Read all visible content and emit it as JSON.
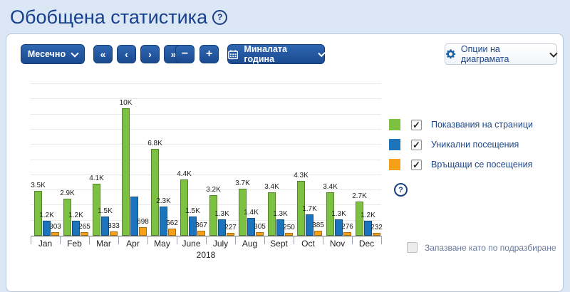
{
  "header": {
    "title": "Обобщена статистика",
    "help_icon": "?"
  },
  "toolbar": {
    "period_dropdown": {
      "label": "Месечно"
    },
    "nav_buttons": [
      {
        "name": "first",
        "glyph": "«"
      },
      {
        "name": "prev",
        "glyph": "‹"
      },
      {
        "name": "next",
        "glyph": "›"
      },
      {
        "name": "last",
        "glyph": "»"
      }
    ],
    "zoom_out_label": "−",
    "zoom_in_label": "+",
    "range_dropdown": {
      "label": "Миналата година",
      "icon": "calendar-icon"
    },
    "options_dropdown": {
      "label": "Опции на диаграмата",
      "icon": "gear-icon"
    }
  },
  "legend": {
    "items": [
      {
        "label": "Показвания на страници",
        "color": "#7dc142",
        "checked": true
      },
      {
        "label": "Уникални посещения",
        "color": "#1c75bc",
        "checked": true
      },
      {
        "label": "Връщащи се посещения",
        "color": "#f6a01a",
        "checked": true
      }
    ],
    "help_icon": "?"
  },
  "footer": {
    "save_default_label": "Запазване като по подразбиране",
    "checked": false
  },
  "chart_data": {
    "type": "bar",
    "title": "",
    "categories": [
      "Jan",
      "Feb",
      "Mar",
      "Apr",
      "May",
      "June",
      "July",
      "Aug",
      "Sept",
      "Oct",
      "Nov",
      "Dec"
    ],
    "x_axis_label": "2018",
    "ylabel": "",
    "ylim": [
      0,
      10500
    ],
    "grid": true,
    "legend_position": "right",
    "series": [
      {
        "name": "Показвания на страници",
        "color": "#7dc142",
        "values": [
          3500,
          2900,
          4100,
          10000,
          6800,
          4400,
          3200,
          3700,
          3400,
          4300,
          3400,
          2700
        ],
        "labels": [
          "3.5K",
          "2.9K",
          "4.1K",
          "10K",
          "6.8K",
          "4.4K",
          "3.2K",
          "3.7K",
          "3.4K",
          "4.3K",
          "3.4K",
          "2.7K"
        ]
      },
      {
        "name": "Уникални посещения",
        "color": "#1c75bc",
        "values": [
          1200,
          1200,
          1500,
          3100,
          2300,
          1500,
          1300,
          1400,
          1300,
          1700,
          1300,
          1200
        ],
        "labels": [
          "1.2K",
          "1.2K",
          "1.5K",
          "",
          "2.3K",
          "1.5K",
          "1.3K",
          "1.4K",
          "1.3K",
          "1.7K",
          "1.3K",
          "1.2K"
        ]
      },
      {
        "name": "Връщащи се посещения",
        "color": "#f6a01a",
        "values": [
          303,
          265,
          333,
          698,
          562,
          367,
          227,
          305,
          250,
          385,
          276,
          232
        ],
        "labels": [
          "303",
          "265",
          "333",
          "698",
          "562",
          "367",
          "227",
          "305",
          "250",
          "385",
          "276",
          "232"
        ]
      }
    ]
  },
  "colors": {
    "title": "#17418e",
    "button_blue": "#1b4a8f",
    "header_bg": "#dbe7f5",
    "panel_border": "#b7c7db",
    "grid": "#e9e9e9"
  }
}
